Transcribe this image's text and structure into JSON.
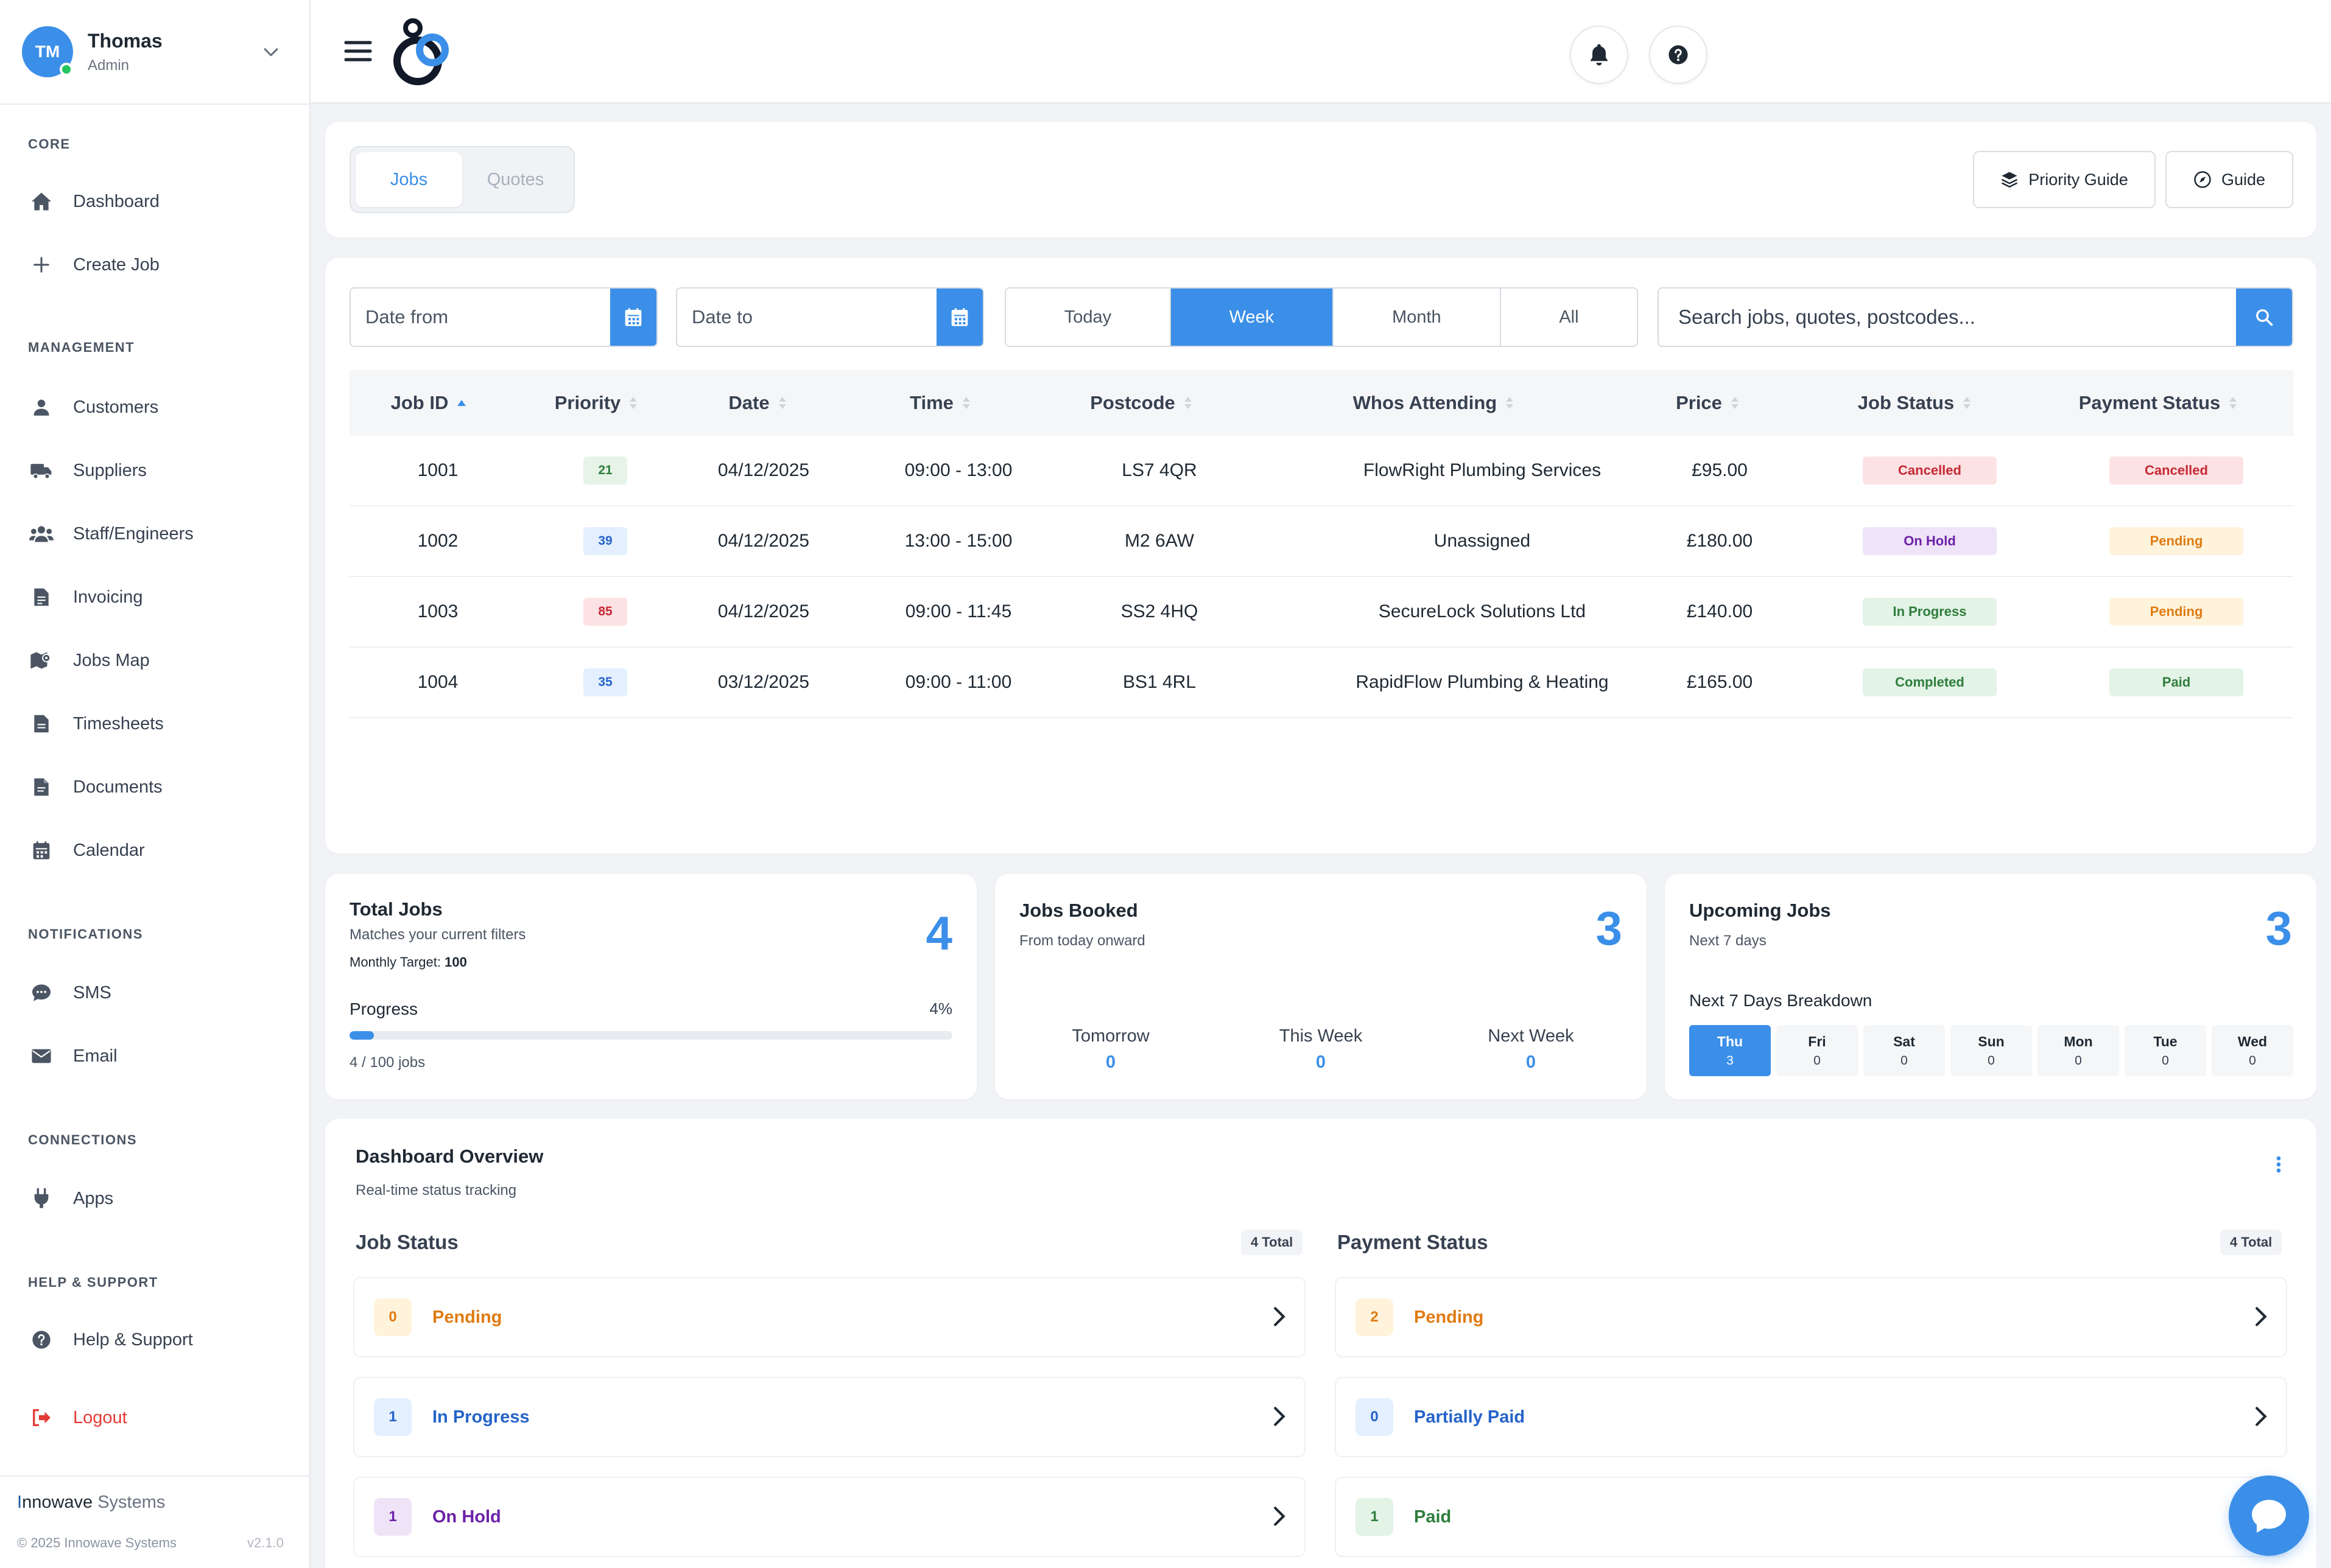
{
  "user": {
    "initials": "TM",
    "name": "Thomas",
    "role": "Admin"
  },
  "sidebar": {
    "sections": [
      {
        "title": "CORE",
        "items": [
          {
            "label": "Dashboard",
            "icon": "home-icon"
          },
          {
            "label": "Create Job",
            "icon": "plus-icon"
          }
        ]
      },
      {
        "title": "MANAGEMENT",
        "items": [
          {
            "label": "Customers",
            "icon": "user-icon"
          },
          {
            "label": "Suppliers",
            "icon": "truck-icon"
          },
          {
            "label": "Staff/Engineers",
            "icon": "users-icon"
          },
          {
            "label": "Invoicing",
            "icon": "invoice-icon"
          },
          {
            "label": "Jobs Map",
            "icon": "map-icon"
          },
          {
            "label": "Timesheets",
            "icon": "timesheet-icon"
          },
          {
            "label": "Documents",
            "icon": "document-icon"
          },
          {
            "label": "Calendar",
            "icon": "calendar-icon"
          }
        ]
      },
      {
        "title": "NOTIFICATIONS",
        "items": [
          {
            "label": "SMS",
            "icon": "sms-icon"
          },
          {
            "label": "Email",
            "icon": "email-icon"
          }
        ]
      },
      {
        "title": "CONNECTIONS",
        "items": [
          {
            "label": "Apps",
            "icon": "plug-icon"
          }
        ]
      },
      {
        "title": "HELP & SUPPORT",
        "items": [
          {
            "label": "Help & Support",
            "icon": "help-icon"
          }
        ]
      }
    ],
    "logout": "Logout",
    "brand_first": "I",
    "brand_mid": "nnowave",
    "brand_last": " Systems",
    "copyright": "© 2025 Innowave Systems",
    "version": "v2.1.0"
  },
  "tabs": [
    {
      "label": "Jobs",
      "active": true
    },
    {
      "label": "Quotes",
      "active": false
    }
  ],
  "header_buttons": {
    "priority_guide": "Priority Guide",
    "guide": "Guide"
  },
  "filters": {
    "date_from_placeholder": "Date from",
    "date_to_placeholder": "Date to",
    "ranges": [
      "Today",
      "Week",
      "Month",
      "All"
    ],
    "active_range": "Week",
    "search_placeholder": "Search jobs, quotes, postcodes..."
  },
  "table": {
    "columns": [
      "Job ID",
      "Priority",
      "Date",
      "Time",
      "Postcode",
      "Whos Attending",
      "Price",
      "Job Status",
      "Payment Status"
    ],
    "rows": [
      {
        "id": "1001",
        "priority": "21",
        "priority_level": "low",
        "date": "04/12/2025",
        "time": "09:00 - 13:00",
        "postcode": "LS7 4QR",
        "attending": "FlowRight Plumbing Services",
        "price": "£95.00",
        "job_status": "Cancelled",
        "payment_status": "Cancelled"
      },
      {
        "id": "1002",
        "priority": "39",
        "priority_level": "mid",
        "date": "04/12/2025",
        "time": "13:00 - 15:00",
        "postcode": "M2 6AW",
        "attending": "Unassigned",
        "price": "£180.00",
        "job_status": "On Hold",
        "payment_status": "Pending"
      },
      {
        "id": "1003",
        "priority": "85",
        "priority_level": "high",
        "date": "04/12/2025",
        "time": "09:00 - 11:45",
        "postcode": "SS2 4HQ",
        "attending": "SecureLock Solutions Ltd",
        "price": "£140.00",
        "job_status": "In Progress",
        "payment_status": "Pending"
      },
      {
        "id": "1004",
        "priority": "35",
        "priority_level": "mid",
        "date": "03/12/2025",
        "time": "09:00 - 11:00",
        "postcode": "BS1 4RL",
        "attending": "RapidFlow Plumbing & Heating",
        "price": "£165.00",
        "job_status": "Completed",
        "payment_status": "Paid"
      }
    ]
  },
  "stats": {
    "total_jobs": {
      "title": "Total Jobs",
      "subtitle": "Matches your current filters",
      "target_label": "Monthly Target:",
      "target_value": "100",
      "value": "4",
      "progress_label": "Progress",
      "progress_percent": "4%",
      "progress_fraction": 0.04,
      "progress_caption": "4 / 100 jobs"
    },
    "jobs_booked": {
      "title": "Jobs Booked",
      "subtitle": "From today onward",
      "value": "3",
      "breakdown": [
        {
          "label": "Tomorrow",
          "value": "0"
        },
        {
          "label": "This Week",
          "value": "0"
        },
        {
          "label": "Next Week",
          "value": "0"
        }
      ]
    },
    "upcoming_jobs": {
      "title": "Upcoming Jobs",
      "subtitle": "Next 7 days",
      "value": "3",
      "breakdown_title": "Next 7 Days Breakdown",
      "days": [
        {
          "day": "Thu",
          "count": "3",
          "active": true
        },
        {
          "day": "Fri",
          "count": "0"
        },
        {
          "day": "Sat",
          "count": "0"
        },
        {
          "day": "Sun",
          "count": "0"
        },
        {
          "day": "Mon",
          "count": "0"
        },
        {
          "day": "Tue",
          "count": "0"
        },
        {
          "day": "Wed",
          "count": "0"
        }
      ]
    }
  },
  "overview": {
    "title": "Dashboard Overview",
    "subtitle": "Real-time status tracking",
    "job_status": {
      "title": "Job Status",
      "total": "4 Total",
      "items": [
        {
          "count": "0",
          "label": "Pending"
        },
        {
          "count": "1",
          "label": "In Progress"
        },
        {
          "count": "1",
          "label": "On Hold"
        }
      ]
    },
    "payment_status": {
      "title": "Payment Status",
      "total": "4 Total",
      "items": [
        {
          "count": "2",
          "label": "Pending"
        },
        {
          "count": "0",
          "label": "Partially Paid"
        },
        {
          "count": "1",
          "label": "Paid"
        }
      ]
    }
  },
  "colors": {
    "accent": "#3b8fe8",
    "cancelled_bg": "#fde2e4",
    "cancelled_fg": "#c62834",
    "onhold_bg": "#efe3f7",
    "onhold_fg": "#6b21a8",
    "inprogress_bg": "#e3f3e6",
    "inprogress_fg": "#2e7d3c",
    "pending_bg": "#fff3dc",
    "pending_fg": "#e07b12",
    "partial_bg": "#e4efff",
    "partial_fg": "#2563c9"
  }
}
